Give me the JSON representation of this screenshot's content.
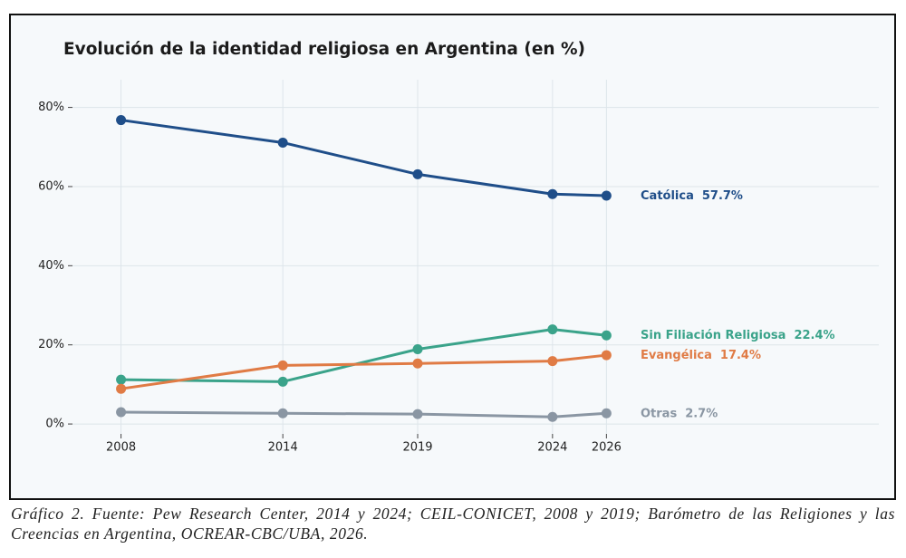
{
  "chart_data": {
    "type": "line",
    "title": "Evolución de la identidad religiosa en Argentina (en %)",
    "x": [
      2008,
      2014,
      2019,
      2024,
      2026
    ],
    "xticks": [
      2008,
      2014,
      2019,
      2024,
      2026
    ],
    "xlim": [
      2006.2,
      2036.1
    ],
    "ylim": [
      -2.5,
      87
    ],
    "yticks": [
      {
        "value": 0,
        "label": "0%"
      },
      {
        "value": 20,
        "label": "20%"
      },
      {
        "value": 40,
        "label": "40%"
      },
      {
        "value": 60,
        "label": "60%"
      },
      {
        "value": 80,
        "label": "80%"
      }
    ],
    "grid": true,
    "series": [
      {
        "name": "Católica",
        "color": "#1f4e89",
        "values": [
          76.8,
          71.1,
          63.1,
          58.1,
          57.7
        ],
        "value_labels": [
          null,
          null,
          null,
          null,
          "57.7%"
        ]
      },
      {
        "name": "Sin Filiación Religiosa",
        "color": "#3aa38a",
        "values": [
          11.2,
          10.7,
          18.9,
          23.9,
          22.4
        ],
        "value_labels": [
          null,
          null,
          null,
          null,
          "22.4%"
        ]
      },
      {
        "name": "Evangélica",
        "color": "#e07b45",
        "values": [
          8.9,
          14.8,
          15.3,
          15.9,
          17.4
        ],
        "value_labels": [
          null,
          null,
          null,
          null,
          "17.4%"
        ]
      },
      {
        "name": "Otras",
        "color": "#8a96a3",
        "values": [
          3.0,
          2.7,
          2.5,
          1.8,
          2.7
        ],
        "value_labels": [
          null,
          null,
          null,
          null,
          "2.7%"
        ]
      }
    ]
  },
  "caption": "Gráfico 2. Fuente: Pew Research Center, 2014 y 2024; CEIL-CONICET, 2008 y 2019; Barómetro de las Religiones y las Creencias en Argentina, OCREAR-CBC/UBA, 2026."
}
